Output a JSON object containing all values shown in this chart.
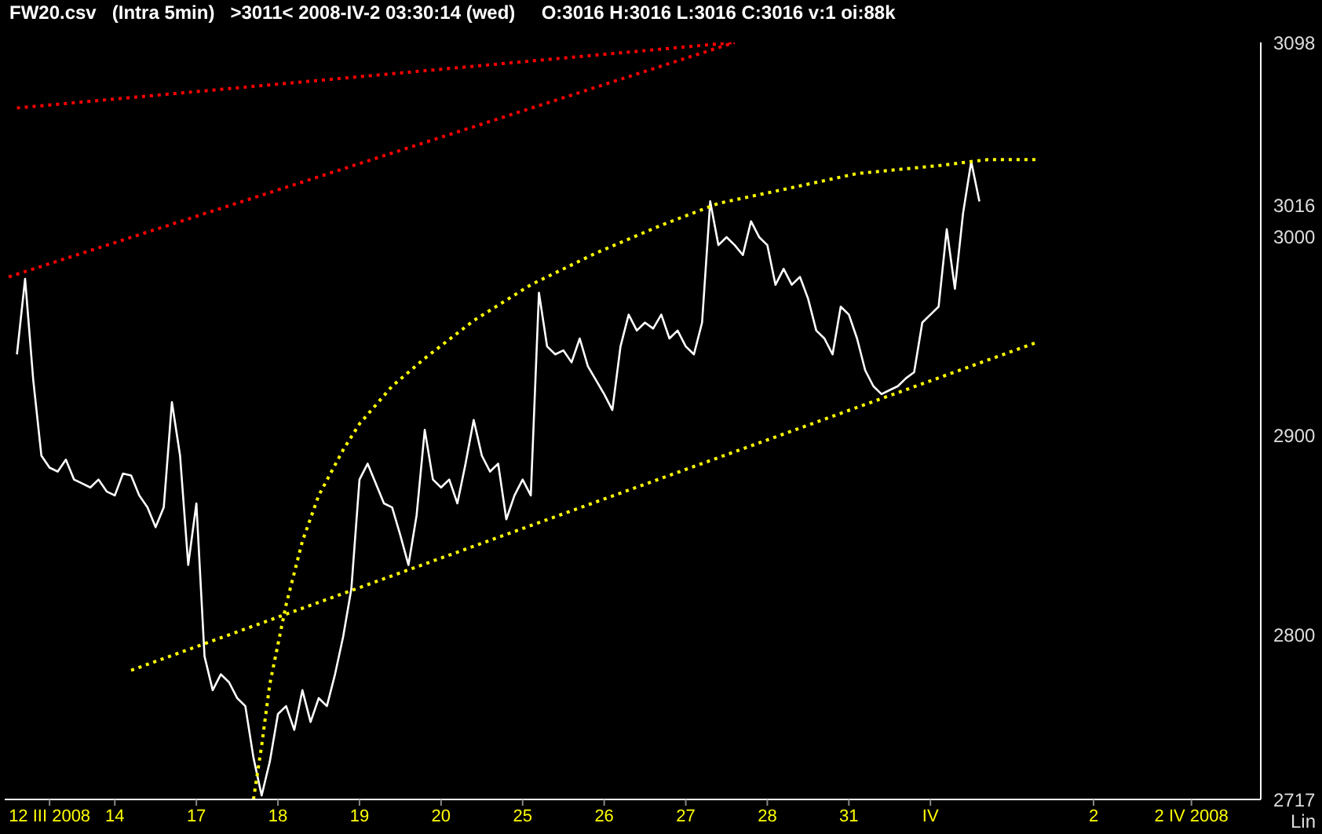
{
  "chart_data": {
    "type": "line",
    "title": "FW20.csv   (Intra 5min)   >3011< 2008-IV-2 03:30:14 (wed)     O:3016 H:3016 L:3016 C:3016 v:1 oi:88k",
    "annotations": [
      "Lin"
    ],
    "categories": [
      null,
      null,
      null,
      null,
      null,
      "12 III 2008",
      null,
      null,
      null,
      null,
      null,
      null,
      null,
      "14",
      null,
      null,
      null,
      null,
      null,
      null,
      null,
      null,
      null,
      "17",
      null,
      null,
      null,
      null,
      null,
      null,
      null,
      null,
      null,
      "18",
      null,
      null,
      null,
      null,
      null,
      null,
      null,
      null,
      null,
      "19",
      null,
      null,
      null,
      null,
      null,
      null,
      null,
      null,
      null,
      "20",
      null,
      null,
      null,
      null,
      null,
      null,
      null,
      null,
      null,
      "25",
      null,
      null,
      null,
      null,
      null,
      null,
      null,
      null,
      null,
      "26",
      null,
      null,
      null,
      null,
      null,
      null,
      null,
      null,
      null,
      "27",
      null,
      null,
      null,
      null,
      null,
      null,
      null,
      null,
      null,
      "28",
      null,
      null,
      null,
      null,
      null,
      null,
      null,
      null,
      null,
      "31",
      null,
      null,
      null,
      null,
      null,
      null,
      null,
      null,
      null,
      "IV",
      null,
      null,
      null,
      null,
      null,
      null,
      null,
      null,
      null,
      null,
      null,
      null,
      null,
      null,
      null,
      null,
      null,
      null,
      null,
      "2",
      null,
      null,
      null,
      null,
      null,
      null,
      null,
      null,
      null,
      null,
      null,
      "2 IV 2008",
      null,
      null,
      null,
      null,
      null,
      null,
      null,
      null
    ],
    "ylim": [
      2717,
      3098
    ],
    "yticks": [
      2717,
      2800,
      2900,
      3000,
      3016,
      3098
    ],
    "grid": false,
    "marker": "none",
    "series": [
      {
        "color": "#ffffff",
        "line_style": "solid",
        "values": [
          null,
          2941,
          2979,
          2928,
          2890,
          2884,
          2882,
          2888,
          2878,
          2876,
          2874,
          2878,
          2872,
          2870,
          2881,
          2880,
          2870,
          2864,
          2854,
          2864,
          2917,
          2890,
          2835,
          2866,
          2789,
          2772,
          2780,
          2776,
          2768,
          2764,
          2738,
          2719,
          2736,
          2760,
          2764,
          2752,
          2772,
          2756,
          2768,
          2764,
          2780,
          2799,
          2823,
          2878,
          2886,
          2876,
          2866,
          2864,
          2850,
          2835,
          2860,
          2903,
          2878,
          2874,
          2878,
          2866,
          2886,
          2908,
          2890,
          2882,
          2886,
          2858,
          2870,
          2878,
          2870,
          2972,
          2945,
          2941,
          2943,
          2937,
          2949,
          2935,
          2928,
          2921,
          2913,
          2945,
          2961,
          2953,
          2957,
          2954,
          2961,
          2949,
          2953,
          2945,
          2941,
          2957,
          3018,
          2996,
          3000,
          2996,
          2991,
          3008,
          3000,
          2996,
          2976,
          2984,
          2976,
          2980,
          2969,
          2953,
          2949,
          2941,
          2965,
          2961,
          2949,
          2933,
          2925,
          2921,
          2923,
          2925,
          2929,
          2932,
          2957,
          2961,
          2965,
          3004,
          2974,
          3012,
          3038,
          3018,
          null,
          null,
          null,
          null,
          null,
          null,
          null,
          null,
          null,
          null,
          null,
          null,
          null,
          null,
          null,
          null,
          null,
          null,
          null,
          null,
          null,
          null,
          null,
          null,
          null,
          null,
          null,
          null,
          null,
          null,
          null,
          null,
          null,
          null
        ]
      },
      {
        "color": "#ff0000",
        "line_style": "dotted",
        "values": [
          null,
          3065,
          null,
          null,
          null,
          null,
          null,
          null,
          null,
          null,
          null,
          null,
          null,
          null,
          null,
          null,
          null,
          null,
          null,
          null,
          null,
          null,
          null,
          null,
          null,
          null,
          null,
          null,
          null,
          null,
          null,
          null,
          null,
          null,
          null,
          null,
          null,
          null,
          null,
          null,
          null,
          null,
          null,
          null,
          null,
          null,
          null,
          null,
          null,
          null,
          null,
          null,
          null,
          null,
          null,
          null,
          null,
          null,
          null,
          null,
          null,
          null,
          null,
          null,
          null,
          null,
          null,
          null,
          null,
          null,
          null,
          null,
          null,
          null,
          null,
          null,
          null,
          null,
          null,
          null,
          null,
          null,
          null,
          null,
          null,
          null,
          null,
          null,
          null,
          3098,
          null,
          null,
          null,
          null,
          null,
          null,
          null,
          null,
          null,
          null,
          null,
          null,
          null,
          null,
          null,
          null,
          null,
          null,
          null,
          null,
          null,
          null,
          null,
          null,
          null,
          null,
          null,
          null,
          null,
          null,
          null,
          null,
          null,
          null,
          null,
          null,
          null,
          null,
          null,
          null,
          null,
          null,
          null,
          null,
          null,
          null,
          null,
          null,
          null,
          null,
          null,
          null,
          null,
          null,
          null,
          null,
          null,
          null,
          null,
          null,
          null,
          null,
          null,
          null
        ]
      },
      {
        "color": "#ff0000",
        "line_style": "dotted",
        "values": [
          2980,
          null,
          null,
          null,
          null,
          null,
          null,
          null,
          null,
          null,
          null,
          null,
          null,
          null,
          null,
          null,
          null,
          null,
          null,
          null,
          null,
          null,
          null,
          null,
          null,
          null,
          null,
          null,
          null,
          null,
          null,
          null,
          null,
          null,
          null,
          null,
          null,
          null,
          null,
          null,
          null,
          null,
          null,
          null,
          null,
          null,
          null,
          null,
          null,
          null,
          null,
          null,
          null,
          null,
          null,
          null,
          null,
          null,
          null,
          null,
          null,
          null,
          null,
          null,
          null,
          null,
          null,
          null,
          null,
          null,
          null,
          null,
          null,
          null,
          null,
          null,
          null,
          null,
          null,
          null,
          null,
          null,
          null,
          null,
          null,
          null,
          null,
          null,
          null,
          3098,
          null,
          null,
          null,
          null,
          null,
          null,
          null,
          null,
          null,
          null,
          null,
          null,
          null,
          null,
          null,
          null,
          null,
          null,
          null,
          null,
          null,
          null,
          null,
          null,
          null,
          null,
          null,
          null,
          null,
          null,
          null,
          null,
          null,
          null,
          null,
          null,
          null,
          null,
          null,
          null,
          null,
          null,
          null,
          null,
          null,
          null,
          null,
          null,
          null,
          null,
          null,
          null,
          null,
          null,
          null,
          null,
          null,
          null,
          null,
          null,
          null,
          null,
          null,
          null
        ]
      },
      {
        "color": "#ffff00",
        "line_style": "dotted",
        "values": [
          null,
          null,
          null,
          null,
          null,
          null,
          null,
          null,
          null,
          null,
          null,
          null,
          null,
          null,
          null,
          2782,
          null,
          null,
          null,
          null,
          null,
          null,
          null,
          null,
          null,
          null,
          null,
          null,
          null,
          null,
          null,
          null,
          null,
          null,
          null,
          null,
          null,
          null,
          null,
          null,
          null,
          null,
          null,
          null,
          null,
          null,
          null,
          null,
          null,
          null,
          null,
          null,
          null,
          null,
          null,
          null,
          null,
          null,
          null,
          null,
          null,
          null,
          null,
          null,
          null,
          null,
          null,
          null,
          null,
          null,
          null,
          null,
          null,
          null,
          null,
          null,
          null,
          null,
          null,
          null,
          null,
          null,
          null,
          null,
          null,
          null,
          null,
          null,
          null,
          null,
          null,
          null,
          null,
          null,
          null,
          null,
          null,
          null,
          null,
          null,
          null,
          null,
          null,
          null,
          null,
          null,
          null,
          null,
          null,
          null,
          null,
          null,
          null,
          null,
          null,
          null,
          null,
          null,
          null,
          null,
          null,
          null,
          null,
          null,
          null,
          null,
          2947,
          null,
          null,
          null,
          null,
          null,
          null,
          null,
          null,
          null,
          null,
          null,
          null,
          null,
          null,
          null,
          null,
          null,
          null,
          null,
          null,
          null,
          null,
          null,
          null,
          null,
          null,
          null
        ]
      },
      {
        "color": "#ffff00",
        "line_style": "dotted",
        "values": [
          null,
          null,
          null,
          null,
          null,
          null,
          null,
          null,
          null,
          null,
          null,
          null,
          null,
          null,
          null,
          null,
          null,
          null,
          null,
          null,
          null,
          null,
          null,
          null,
          null,
          null,
          null,
          null,
          null,
          null,
          2717,
          2744,
          2775,
          null,
          2815,
          null,
          2847,
          null,
          2870,
          null,
          null,
          2893,
          null,
          2906,
          null,
          null,
          null,
          2925,
          null,
          null,
          null,
          2939,
          null,
          null,
          null,
          null,
          null,
          2958,
          null,
          null,
          null,
          null,
          null,
          null,
          2976,
          null,
          null,
          null,
          null,
          null,
          null,
          null,
          2992,
          null,
          null,
          null,
          null,
          null,
          null,
          null,
          3006,
          null,
          null,
          null,
          null,
          null,
          null,
          3017,
          null,
          null,
          null,
          null,
          null,
          null,
          null,
          3024,
          null,
          null,
          null,
          null,
          null,
          null,
          null,
          null,
          3032,
          null,
          null,
          null,
          null,
          null,
          null,
          null,
          null,
          null,
          3036,
          null,
          null,
          null,
          null,
          null,
          3039,
          null,
          null,
          null,
          null,
          null,
          3039,
          null,
          null,
          null,
          null,
          null,
          null,
          null,
          null,
          null,
          null,
          null,
          null,
          null,
          null,
          null,
          null,
          null,
          null,
          null,
          null,
          null,
          null,
          null,
          null,
          null,
          null,
          null
        ]
      }
    ]
  }
}
